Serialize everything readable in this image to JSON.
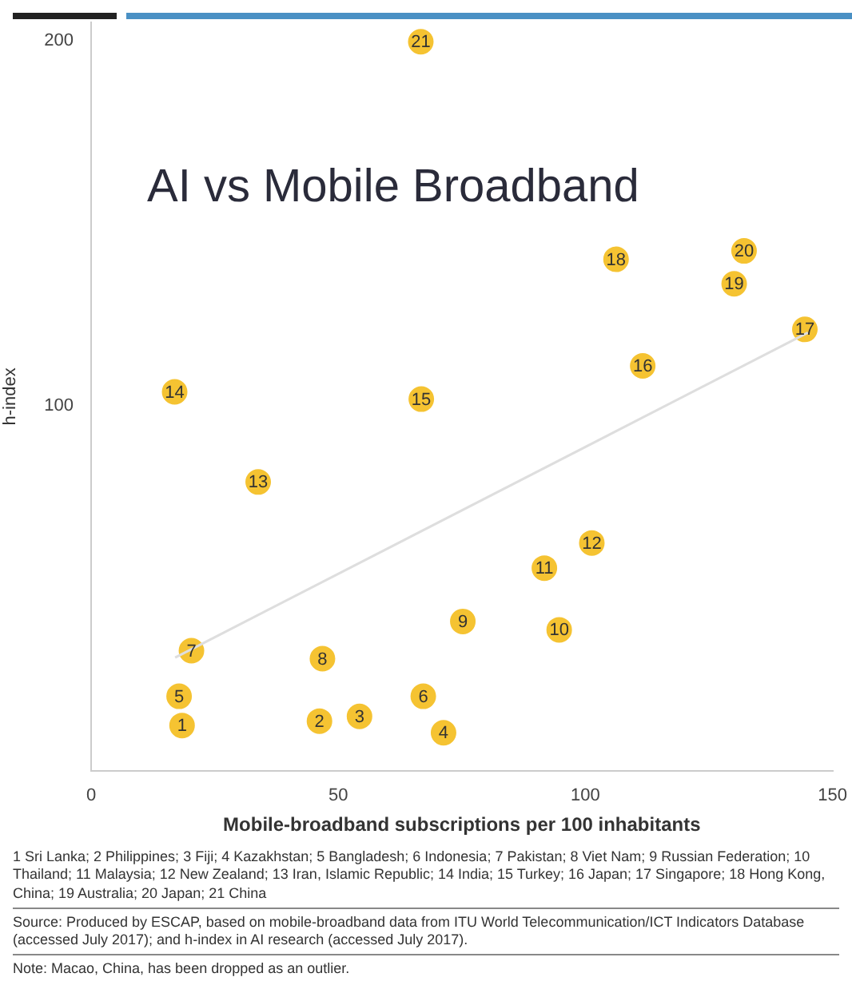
{
  "chart_data": {
    "type": "scatter",
    "title": "AI vs Mobile Broadband",
    "xlabel": "Mobile-broadband subscriptions per 100 inhabitants",
    "ylabel": "h-index",
    "xlim": [
      0,
      150
    ],
    "xticks": [
      0,
      50,
      100,
      150
    ],
    "ylim": [
      0,
      205
    ],
    "yticks": [
      100,
      200
    ],
    "marker": "circle",
    "series": [
      {
        "type": "line",
        "marker": "none",
        "color": "#dedede",
        "x": [
          17,
          145
        ],
        "values": [
          31,
          120
        ]
      },
      {
        "color": "#f5c332",
        "x": [
          18.4,
          46.2,
          54.3,
          71.3,
          17.8,
          67.2,
          20.3,
          46.8,
          75.2,
          94.7,
          91.7,
          101.3,
          33.8,
          16.9,
          66.8,
          111.6,
          144.4,
          106.2,
          130.1,
          132.1,
          66.7
        ],
        "values": [
          12.4,
          13.6,
          14.9,
          10.4,
          20.4,
          20.4,
          32.9,
          30.7,
          40.9,
          38.6,
          55.5,
          62.4,
          79.1,
          103.8,
          101.8,
          110.9,
          120.9,
          140.1,
          133.4,
          142.4,
          199.7
        ]
      }
    ],
    "annotations": [
      {
        "text": "1",
        "x": 18.4,
        "y": 12.4
      },
      {
        "text": "2",
        "x": 46.2,
        "y": 13.6
      },
      {
        "text": "3",
        "x": 54.3,
        "y": 14.9
      },
      {
        "text": "4",
        "x": 71.3,
        "y": 10.4
      },
      {
        "text": "5",
        "x": 17.8,
        "y": 20.4
      },
      {
        "text": "6",
        "x": 67.2,
        "y": 20.4
      },
      {
        "text": "7",
        "x": 20.3,
        "y": 32.9
      },
      {
        "text": "8",
        "x": 46.8,
        "y": 30.7
      },
      {
        "text": "9",
        "x": 75.2,
        "y": 40.9
      },
      {
        "text": "10",
        "x": 94.7,
        "y": 38.6
      },
      {
        "text": "11",
        "x": 91.7,
        "y": 55.5
      },
      {
        "text": "12",
        "x": 101.3,
        "y": 62.4
      },
      {
        "text": "13",
        "x": 33.8,
        "y": 79.1
      },
      {
        "text": "14",
        "x": 16.9,
        "y": 103.8
      },
      {
        "text": "15",
        "x": 66.8,
        "y": 101.8
      },
      {
        "text": "16",
        "x": 111.6,
        "y": 110.9
      },
      {
        "text": "17",
        "x": 144.4,
        "y": 120.9
      },
      {
        "text": "18",
        "x": 106.2,
        "y": 140.1
      },
      {
        "text": "19",
        "x": 130.1,
        "y": 133.4
      },
      {
        "text": "20",
        "x": 132.1,
        "y": 142.4
      },
      {
        "text": "21",
        "x": 66.7,
        "y": 199.7
      },
      "1 Sri Lanka; 2 Philippines; 3 Fiji; 4 Kazakhstan; 5 Bangladesh; 6 Indonesia; 7 Pakistan; 8 Viet Nam; 9 Russian Federation; 10 Thailand; 11 Malaysia; 12 New Zealand; 13 Iran, Islamic Republic; 14 India; 15 Turkey; 16 Japan; 17 Singapore; 18 Hong Kong, China; 19 Australia; 20 Japan; 21 China",
      "Source: Produced by ESCAP, based on mobile-broadband data from ITU World Telecommunication/ICT Indicators Database (accessed July 2017); and h-index in AI research (accessed July 2017).",
      "Note: Macao, China, has been dropped as an outlier."
    ]
  }
}
